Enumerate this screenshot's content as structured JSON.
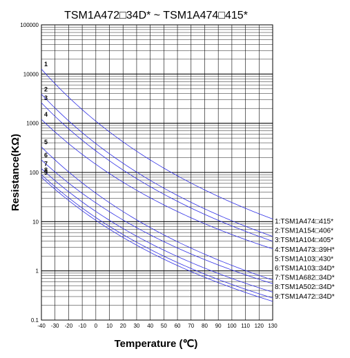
{
  "chart_data": {
    "type": "line",
    "title": "TSM1A472□34D* ~ TSM1A474□415*",
    "xlabel": "Temperature (℃)",
    "ylabel": "Resistance(KΩ)",
    "x_scale": "linear",
    "y_scale": "log",
    "xlim": [
      -40,
      130
    ],
    "ylim": [
      0.1,
      100000
    ],
    "grid": true,
    "x_ticks": [
      "-40",
      "-30",
      "-20",
      "-10",
      "0",
      "10",
      "20",
      "30",
      "40",
      "50",
      "60",
      "70",
      "80",
      "90",
      "100",
      "110",
      "120",
      "130"
    ],
    "y_ticks": [
      "0.1",
      "1",
      "10",
      "100",
      "1000",
      "10000",
      "100000"
    ],
    "legend_position": "right",
    "x": [
      -40,
      130
    ],
    "series": [
      {
        "name": "1:TSM1A474□415*",
        "label": "1",
        "values": [
          12600,
          11.3
        ]
      },
      {
        "name": "2:TSM1A154□406*",
        "label": "2",
        "values": [
          3900,
          5.0
        ]
      },
      {
        "name": "3:TSM1A104□405*",
        "label": "3",
        "values": [
          2600,
          4.0
        ]
      },
      {
        "name": "4:TSM1A473□39H*",
        "label": "4",
        "values": [
          1200,
          2.8
        ]
      },
      {
        "name": "5:TSM1A103□430*",
        "label": "5",
        "values": [
          330,
          0.65
        ]
      },
      {
        "name": "6:TSM1A103□34D*",
        "label": "6",
        "values": [
          180,
          0.55
        ]
      },
      {
        "name": "7:TSM1A682□34D*",
        "label": "7",
        "values": [
          120,
          0.37
        ]
      },
      {
        "name": "8:TSM1A502□34D*",
        "label": "8",
        "values": [
          90,
          0.28
        ]
      },
      {
        "name": "9:TSM1A472□34D*",
        "label": "9",
        "values": [
          80,
          0.24
        ]
      }
    ],
    "line_color": "#2e2ee6"
  }
}
